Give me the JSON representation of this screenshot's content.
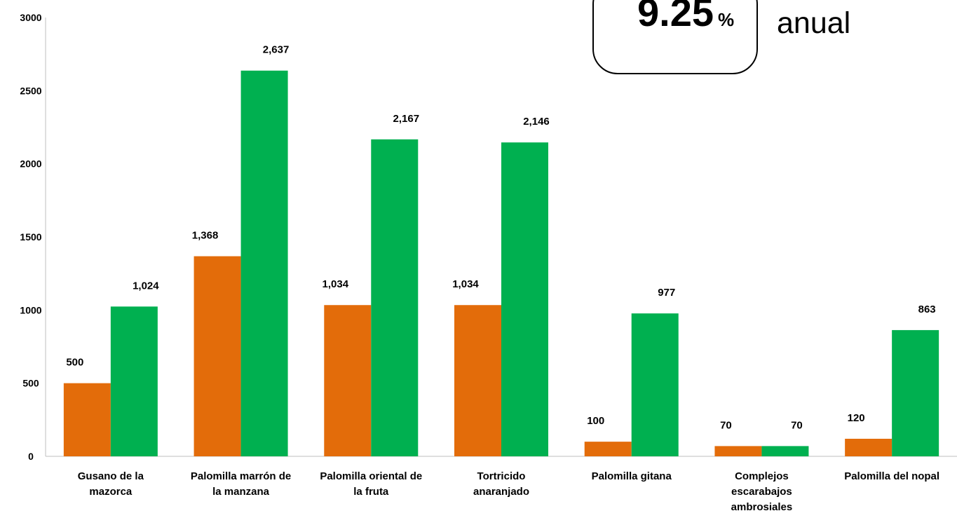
{
  "callout": {
    "value": "9.25",
    "unit": "%",
    "note": "anual"
  },
  "chart_data": {
    "type": "bar",
    "categories": [
      [
        "Gusano de la",
        "mazorca"
      ],
      [
        "Palomilla marrón de",
        "la manzana"
      ],
      [
        "Palomilla oriental de",
        "la fruta"
      ],
      [
        "Tortricido",
        "anaranjado"
      ],
      [
        "Palomilla gitana"
      ],
      [
        "Complejos",
        "escarabajos",
        "ambrosiales"
      ],
      [
        "Palomilla del nopal"
      ]
    ],
    "series": [
      {
        "values": [
          500,
          1368,
          1034,
          1034,
          100,
          70,
          120
        ],
        "labels": [
          "500",
          "1,368",
          "1,034",
          "1,034",
          "100",
          "70",
          "120"
        ],
        "color": "#E36C0A"
      },
      {
        "values": [
          1024,
          2637,
          2167,
          2146,
          977,
          70,
          863
        ],
        "labels": [
          "1,024",
          "2,637",
          "2,167",
          "2,146",
          "977",
          "70",
          "863"
        ],
        "color": "#00B050"
      }
    ],
    "ylim": [
      0,
      3000
    ],
    "yticks": [
      "0",
      "500",
      "1000",
      "1500",
      "2000",
      "2500",
      "3000"
    ],
    "grid": false,
    "legend": "none"
  }
}
